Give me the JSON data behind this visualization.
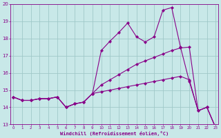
{
  "background_color": "#c8e8e8",
  "line_color": "#880088",
  "grid_color": "#a0c8c8",
  "xlim": [
    -0.3,
    23.3
  ],
  "ylim": [
    13,
    20
  ],
  "xtick_vals": [
    0,
    1,
    2,
    3,
    4,
    5,
    6,
    7,
    8,
    9,
    10,
    11,
    12,
    13,
    14,
    15,
    16,
    17,
    18,
    19,
    20,
    21,
    22,
    23
  ],
  "ytick_vals": [
    13,
    14,
    15,
    16,
    17,
    18,
    19,
    20
  ],
  "xlabel": "Windchill (Refroidissement éolien,°C)",
  "line1_x": [
    0,
    1,
    2,
    3,
    4,
    5,
    6,
    7,
    8,
    9,
    10,
    11,
    12,
    13,
    14,
    15,
    16,
    17,
    18,
    19,
    20,
    21,
    22,
    23
  ],
  "line1_y": [
    14.6,
    14.4,
    14.4,
    14.5,
    14.5,
    14.6,
    14.0,
    14.2,
    14.3,
    14.8,
    17.3,
    17.85,
    18.35,
    18.9,
    18.1,
    17.8,
    18.1,
    19.65,
    19.8,
    17.5,
    15.5,
    13.8,
    14.0,
    12.8
  ],
  "line2_x": [
    0,
    1,
    2,
    3,
    4,
    5,
    6,
    7,
    8,
    9,
    10,
    11,
    12,
    13,
    14,
    15,
    16,
    17,
    18,
    19,
    20,
    21,
    22,
    23
  ],
  "line2_y": [
    14.6,
    14.4,
    14.4,
    14.5,
    14.5,
    14.6,
    14.0,
    14.2,
    14.3,
    14.8,
    14.9,
    15.0,
    15.1,
    15.2,
    15.3,
    15.4,
    15.5,
    15.6,
    15.7,
    15.8,
    15.6,
    13.8,
    14.0,
    12.8
  ],
  "line3_x": [
    0,
    1,
    2,
    3,
    4,
    5,
    6,
    7,
    8,
    9,
    10,
    11,
    12,
    13,
    14,
    15,
    16,
    17,
    18,
    19,
    20,
    21,
    22,
    23
  ],
  "line3_y": [
    14.6,
    14.4,
    14.4,
    14.5,
    14.5,
    14.6,
    14.0,
    14.2,
    14.3,
    14.8,
    15.3,
    15.6,
    15.9,
    16.2,
    16.5,
    16.7,
    16.9,
    17.1,
    17.3,
    17.45,
    17.5,
    13.8,
    14.0,
    12.8
  ]
}
